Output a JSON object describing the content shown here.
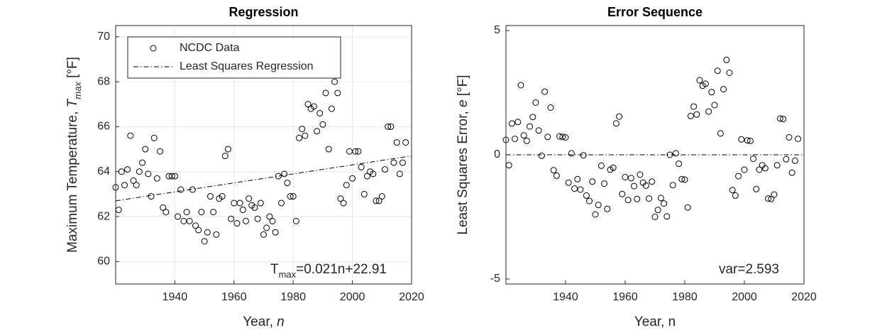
{
  "chart_data": [
    {
      "type": "scatter",
      "title": "Regression",
      "xlabel": [
        "Year, ",
        "n"
      ],
      "ylabel": [
        "Maximum Temperature, ",
        "T",
        "max",
        " [°F]"
      ],
      "annotation": [
        "T",
        "max",
        "=0.021n+22.91"
      ],
      "xlim": [
        1920,
        2020
      ],
      "ylim": [
        59,
        70.5
      ],
      "xticks": [
        1940,
        1960,
        1980,
        2000,
        2020
      ],
      "yticks": [
        60,
        62,
        64,
        66,
        68,
        70
      ],
      "grid": true,
      "legend": "upper left",
      "series": [
        {
          "name": "NCDC Data",
          "color": "#000000",
          "marker": "o",
          "x": [
            1920,
            1921,
            1922,
            1923,
            1924,
            1925,
            1926,
            1927,
            1928,
            1929,
            1930,
            1931,
            1932,
            1933,
            1934,
            1935,
            1936,
            1937,
            1938,
            1939,
            1940,
            1941,
            1942,
            1943,
            1944,
            1945,
            1946,
            1947,
            1948,
            1949,
            1950,
            1951,
            1952,
            1953,
            1954,
            1955,
            1956,
            1957,
            1958,
            1959,
            1960,
            1961,
            1962,
            1963,
            1964,
            1965,
            1966,
            1967,
            1968,
            1969,
            1970,
            1971,
            1972,
            1973,
            1974,
            1975,
            1976,
            1977,
            1978,
            1979,
            1980,
            1981,
            1982,
            1983,
            1984,
            1985,
            1986,
            1987,
            1988,
            1989,
            1990,
            1991,
            1992,
            1993,
            1994,
            1995,
            1996,
            1997,
            1998,
            1999,
            2000,
            2001,
            2002,
            2003,
            2004,
            2005,
            2006,
            2007,
            2008,
            2009,
            2010,
            2011,
            2012,
            2013,
            2014,
            2015,
            2016,
            2017,
            2018
          ],
          "values": [
            63.3,
            62.3,
            64.0,
            63.4,
            64.1,
            65.6,
            63.6,
            63.4,
            64.0,
            64.4,
            65.0,
            63.9,
            62.9,
            65.5,
            63.7,
            64.9,
            62.4,
            62.2,
            63.8,
            63.8,
            63.8,
            62.0,
            63.2,
            61.8,
            62.2,
            61.8,
            63.2,
            61.6,
            61.4,
            62.2,
            60.9,
            61.3,
            62.9,
            62.2,
            61.2,
            62.8,
            62.9,
            64.7,
            65.0,
            61.9,
            62.6,
            61.7,
            62.6,
            62.3,
            61.8,
            62.8,
            62.5,
            62.4,
            61.9,
            62.6,
            61.2,
            61.5,
            62.0,
            61.8,
            61.3,
            63.8,
            62.6,
            63.9,
            63.5,
            62.9,
            62.9,
            61.8,
            65.5,
            65.9,
            65.6,
            67.0,
            66.8,
            66.9,
            65.8,
            66.6,
            66.1,
            67.5,
            65.0,
            66.8,
            68.0,
            67.5,
            62.8,
            62.6,
            63.4,
            64.9,
            63.7,
            64.9,
            64.9,
            64.2,
            63.0,
            63.8,
            64.0,
            63.9,
            62.7,
            62.7,
            62.9,
            64.1,
            66.0,
            66.0,
            64.4,
            65.3,
            63.9,
            64.4,
            65.3
          ]
        },
        {
          "name": "Least Squares Regression",
          "color": "#000000",
          "marker": "line",
          "x": [
            1920,
            2020
          ],
          "values": [
            62.7,
            64.7
          ]
        }
      ]
    },
    {
      "type": "scatter",
      "title": "Error Sequence",
      "xlabel": [
        "Year, n"
      ],
      "ylabel": [
        "Least Squares Error, ",
        "e",
        " [°F]"
      ],
      "annotation": [
        "var=2.593"
      ],
      "xlim": [
        1920,
        2020
      ],
      "ylim": [
        -5.2,
        5.2
      ],
      "xticks": [
        1940,
        1960,
        1980,
        2000,
        2020
      ],
      "yticks": [
        -5,
        0,
        5
      ],
      "grid": false,
      "series": [
        {
          "color": "#000000",
          "marker": "o",
          "x": [
            1920,
            1921,
            1922,
            1923,
            1924,
            1925,
            1926,
            1927,
            1928,
            1929,
            1930,
            1931,
            1932,
            1933,
            1934,
            1935,
            1936,
            1937,
            1938,
            1939,
            1940,
            1941,
            1942,
            1943,
            1944,
            1945,
            1946,
            1947,
            1948,
            1949,
            1950,
            1951,
            1952,
            1953,
            1954,
            1955,
            1956,
            1957,
            1958,
            1959,
            1960,
            1961,
            1962,
            1963,
            1964,
            1965,
            1966,
            1967,
            1968,
            1969,
            1970,
            1971,
            1972,
            1973,
            1974,
            1975,
            1976,
            1977,
            1978,
            1979,
            1980,
            1981,
            1982,
            1983,
            1984,
            1985,
            1986,
            1987,
            1988,
            1989,
            1990,
            1991,
            1992,
            1993,
            1994,
            1995,
            1996,
            1997,
            1998,
            1999,
            2000,
            2001,
            2002,
            2003,
            2004,
            2005,
            2006,
            2007,
            2008,
            2009,
            2010,
            2011,
            2012,
            2013,
            2014,
            2015,
            2016,
            2017,
            2018
          ],
          "values": [
            0.6,
            -0.42,
            1.26,
            0.64,
            1.32,
            2.8,
            0.78,
            0.56,
            1.14,
            1.52,
            2.1,
            0.98,
            -0.04,
            2.54,
            0.72,
            1.9,
            -0.62,
            -0.84,
            0.74,
            0.72,
            0.7,
            -1.12,
            0.06,
            -1.36,
            -0.98,
            -1.4,
            -0.02,
            -1.64,
            -1.86,
            -1.08,
            -2.4,
            -2.02,
            -0.44,
            -1.16,
            -2.18,
            -0.6,
            -0.52,
            1.26,
            1.54,
            -1.58,
            -0.9,
            -1.82,
            -0.94,
            -1.26,
            -1.78,
            -0.8,
            -1.12,
            -1.24,
            -1.76,
            -1.08,
            -2.5,
            -2.22,
            -1.74,
            -1.96,
            -2.48,
            0.0,
            -1.22,
            0.06,
            -0.36,
            -0.98,
            -1.0,
            -2.12,
            1.56,
            1.94,
            1.62,
            3.0,
            2.78,
            2.86,
            1.74,
            2.52,
            2.0,
            3.38,
            0.86,
            2.64,
            3.82,
            3.3,
            -1.42,
            -1.64,
            -0.86,
            0.62,
            -0.6,
            0.58,
            0.56,
            -0.16,
            -1.38,
            -0.6,
            -0.42,
            -0.54,
            -1.76,
            -1.78,
            -1.6,
            -0.42,
            1.46,
            1.44,
            -0.18,
            0.7,
            -0.72,
            -0.24,
            0.64
          ]
        },
        {
          "color": "#000000",
          "marker": "line",
          "x": [
            1920,
            2020
          ],
          "values": [
            0,
            0
          ]
        }
      ]
    }
  ]
}
